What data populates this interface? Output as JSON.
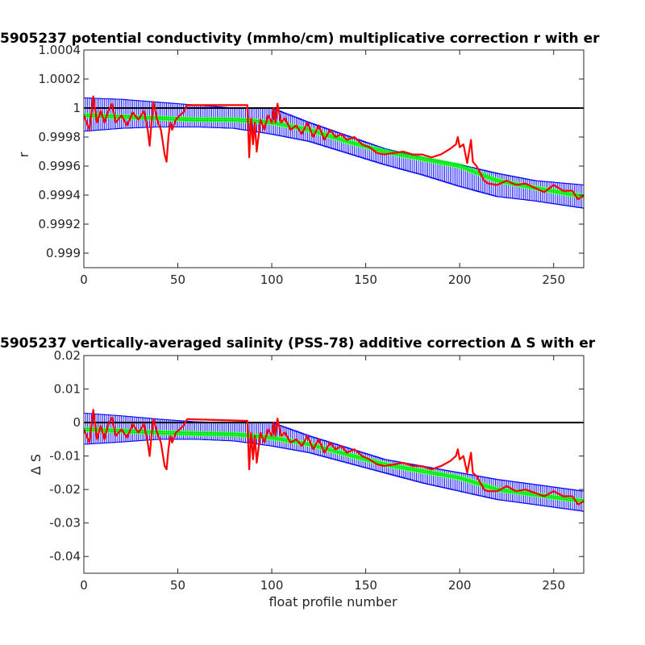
{
  "chart_data": [
    {
      "type": "line",
      "title": "5905237 potential conductivity (mmho/cm) multiplicative correction r with er",
      "xlabel": "",
      "ylabel": "r",
      "xlim": [
        0,
        266
      ],
      "ylim": [
        0.9989,
        1.0004
      ],
      "xticks": [
        "0",
        "50",
        "100",
        "150",
        "200",
        "250"
      ],
      "yticks": [
        "0.999",
        "0.9992",
        "0.9994",
        "0.9996",
        "0.9998",
        "1",
        "1.0002",
        "1.0004"
      ],
      "grid": false,
      "colors": {
        "reference": "#000000",
        "error_band": "#0000ff",
        "fit": "#00ff00",
        "raw": "#ff0000"
      },
      "series": [
        {
          "role": "reference",
          "x": [
            0,
            266
          ],
          "values": [
            1.0,
            1.0
          ]
        },
        {
          "role": "fit",
          "x": [
            0,
            20,
            40,
            60,
            80,
            100,
            120,
            140,
            160,
            180,
            200,
            220,
            240,
            266
          ],
          "values": [
            0.99995,
            0.99994,
            0.99993,
            0.99992,
            0.99992,
            0.9999,
            0.99985,
            0.99977,
            0.9997,
            0.99965,
            0.9996,
            0.9995,
            0.99945,
            0.99939
          ]
        },
        {
          "role": "band_upper",
          "x": [
            0,
            20,
            40,
            60,
            80,
            100,
            120,
            140,
            160,
            180,
            200,
            220,
            240,
            266
          ],
          "values": [
            1.00007,
            1.00006,
            1.00004,
            1.00002,
            1.0,
            1.0,
            0.9999,
            0.99981,
            0.99972,
            0.99966,
            0.99961,
            0.99955,
            0.9995,
            0.99947
          ]
        },
        {
          "role": "band_lower",
          "x": [
            0,
            20,
            40,
            60,
            80,
            100,
            120,
            140,
            160,
            180,
            200,
            220,
            240,
            266
          ],
          "values": [
            0.99984,
            0.99986,
            0.99987,
            0.99987,
            0.99986,
            0.99982,
            0.99977,
            0.99969,
            0.99961,
            0.99954,
            0.99946,
            0.99939,
            0.99936,
            0.99931
          ]
        },
        {
          "role": "raw",
          "x": [
            0,
            3,
            5,
            7,
            9,
            11,
            13,
            15,
            17,
            20,
            23,
            26,
            29,
            32,
            34,
            35,
            36,
            37,
            38,
            39,
            41,
            43,
            44,
            45,
            46,
            47,
            49,
            51,
            53,
            55,
            87,
            88,
            89,
            90,
            91,
            92,
            94,
            96,
            98,
            100,
            101,
            102,
            103,
            105,
            107,
            110,
            113,
            116,
            119,
            122,
            125,
            128,
            131,
            134,
            137,
            140,
            144,
            148,
            152,
            156,
            160,
            165,
            170,
            175,
            180,
            185,
            190,
            195,
            198,
            199,
            200,
            202,
            204,
            205,
            206,
            207,
            209,
            211,
            213,
            215,
            220,
            225,
            230,
            235,
            240,
            245,
            250,
            255,
            260,
            263,
            266
          ],
          "values": [
            0.99995,
            0.99985,
            1.00008,
            0.9999,
            0.99998,
            0.9999,
            0.99998,
            1.00003,
            0.9999,
            0.99995,
            0.99988,
            0.99997,
            0.99992,
            0.99998,
            0.99985,
            0.99974,
            0.9999,
            1.00004,
            0.99998,
            0.99992,
            0.99985,
            0.99968,
            0.99963,
            0.9998,
            0.9999,
            0.99985,
            0.99992,
            0.99995,
            0.99997,
            1.00002,
            1.00002,
            0.99966,
            0.99993,
            0.99975,
            0.9999,
            0.9997,
            0.99992,
            0.99985,
            0.99995,
            0.9999,
            1.0,
            0.9999,
            1.00003,
            0.9999,
            0.99993,
            0.99985,
            0.99988,
            0.99982,
            0.9999,
            0.9998,
            0.99988,
            0.99978,
            0.99985,
            0.9998,
            0.99982,
            0.99978,
            0.9998,
            0.99975,
            0.99973,
            0.99969,
            0.99968,
            0.99969,
            0.9997,
            0.99968,
            0.99968,
            0.99966,
            0.99968,
            0.99972,
            0.99975,
            0.9998,
            0.99973,
            0.99975,
            0.99962,
            0.9997,
            0.99978,
            0.99963,
            0.9996,
            0.99955,
            0.9995,
            0.99948,
            0.99947,
            0.9995,
            0.99947,
            0.99948,
            0.99945,
            0.99942,
            0.99947,
            0.99943,
            0.99943,
            0.99937,
            0.9994
          ]
        }
      ]
    },
    {
      "type": "line",
      "title": "5905237 vertically-averaged salinity (PSS-78) additive correction Δ S with er",
      "xlabel": "float profile number",
      "ylabel": "Δ S",
      "xlim": [
        0,
        266
      ],
      "ylim": [
        -0.045,
        0.02
      ],
      "xticks": [
        "0",
        "50",
        "100",
        "150",
        "200",
        "250"
      ],
      "yticks": [
        "-0.04",
        "-0.03",
        "-0.02",
        "-0.01",
        "0",
        "0.01",
        "0.02"
      ],
      "grid": false,
      "colors": {
        "reference": "#000000",
        "error_band": "#0000ff",
        "fit": "#00ff00",
        "raw": "#ff0000"
      },
      "series": [
        {
          "role": "reference",
          "x": [
            0,
            266
          ],
          "values": [
            0.0,
            0.0
          ]
        },
        {
          "role": "fit",
          "x": [
            0,
            20,
            40,
            60,
            80,
            100,
            120,
            140,
            160,
            180,
            200,
            220,
            240,
            266
          ],
          "values": [
            -0.002,
            -0.0025,
            -0.003,
            -0.0033,
            -0.0035,
            -0.0045,
            -0.0065,
            -0.0095,
            -0.0125,
            -0.0145,
            -0.0165,
            -0.02,
            -0.0215,
            -0.0235
          ]
        },
        {
          "role": "band_upper",
          "x": [
            0,
            20,
            40,
            60,
            80,
            100,
            120,
            140,
            160,
            180,
            200,
            220,
            240,
            266
          ],
          "values": [
            0.0028,
            0.002,
            0.001,
            0.0002,
            0.0,
            0.0,
            -0.004,
            -0.0075,
            -0.011,
            -0.013,
            -0.015,
            -0.017,
            -0.0185,
            -0.0205
          ]
        },
        {
          "role": "band_lower",
          "x": [
            0,
            20,
            40,
            60,
            80,
            100,
            120,
            140,
            160,
            180,
            200,
            220,
            240,
            266
          ],
          "values": [
            -0.0065,
            -0.0058,
            -0.005,
            -0.005,
            -0.0055,
            -0.007,
            -0.009,
            -0.012,
            -0.015,
            -0.018,
            -0.0205,
            -0.023,
            -0.0245,
            -0.0265
          ]
        },
        {
          "role": "raw",
          "x": [
            0,
            3,
            5,
            7,
            9,
            11,
            13,
            15,
            17,
            20,
            23,
            26,
            29,
            32,
            34,
            35,
            36,
            37,
            38,
            39,
            41,
            43,
            44,
            45,
            46,
            47,
            49,
            51,
            53,
            55,
            87,
            88,
            89,
            90,
            91,
            92,
            94,
            96,
            98,
            100,
            101,
            102,
            103,
            105,
            107,
            110,
            113,
            116,
            119,
            122,
            125,
            128,
            131,
            134,
            137,
            140,
            144,
            148,
            152,
            156,
            160,
            165,
            170,
            175,
            180,
            185,
            190,
            195,
            198,
            199,
            200,
            202,
            204,
            205,
            206,
            207,
            209,
            211,
            213,
            215,
            220,
            225,
            230,
            235,
            240,
            245,
            250,
            255,
            260,
            263,
            266
          ],
          "values": [
            -0.002,
            -0.006,
            0.0038,
            -0.005,
            -0.001,
            -0.005,
            -0.0005,
            0.0015,
            -0.004,
            -0.002,
            -0.0045,
            -0.0005,
            -0.003,
            -0.0005,
            -0.006,
            -0.01,
            -0.004,
            0.001,
            -0.001,
            -0.003,
            -0.006,
            -0.013,
            -0.014,
            -0.008,
            -0.004,
            -0.006,
            -0.003,
            -0.002,
            -0.001,
            0.001,
            0.0005,
            -0.014,
            -0.003,
            -0.011,
            -0.004,
            -0.012,
            -0.003,
            -0.006,
            -0.002,
            -0.004,
            0.0,
            -0.004,
            0.0012,
            -0.004,
            -0.003,
            -0.006,
            -0.005,
            -0.007,
            -0.004,
            -0.008,
            -0.005,
            -0.009,
            -0.006,
            -0.008,
            -0.007,
            -0.009,
            -0.008,
            -0.01,
            -0.011,
            -0.0125,
            -0.013,
            -0.0125,
            -0.012,
            -0.013,
            -0.013,
            -0.014,
            -0.013,
            -0.0115,
            -0.01,
            -0.008,
            -0.011,
            -0.01,
            -0.015,
            -0.012,
            -0.009,
            -0.015,
            -0.016,
            -0.018,
            -0.02,
            -0.0205,
            -0.0205,
            -0.019,
            -0.0205,
            -0.02,
            -0.021,
            -0.022,
            -0.0205,
            -0.022,
            -0.022,
            -0.0245,
            -0.0235
          ]
        }
      ]
    }
  ]
}
